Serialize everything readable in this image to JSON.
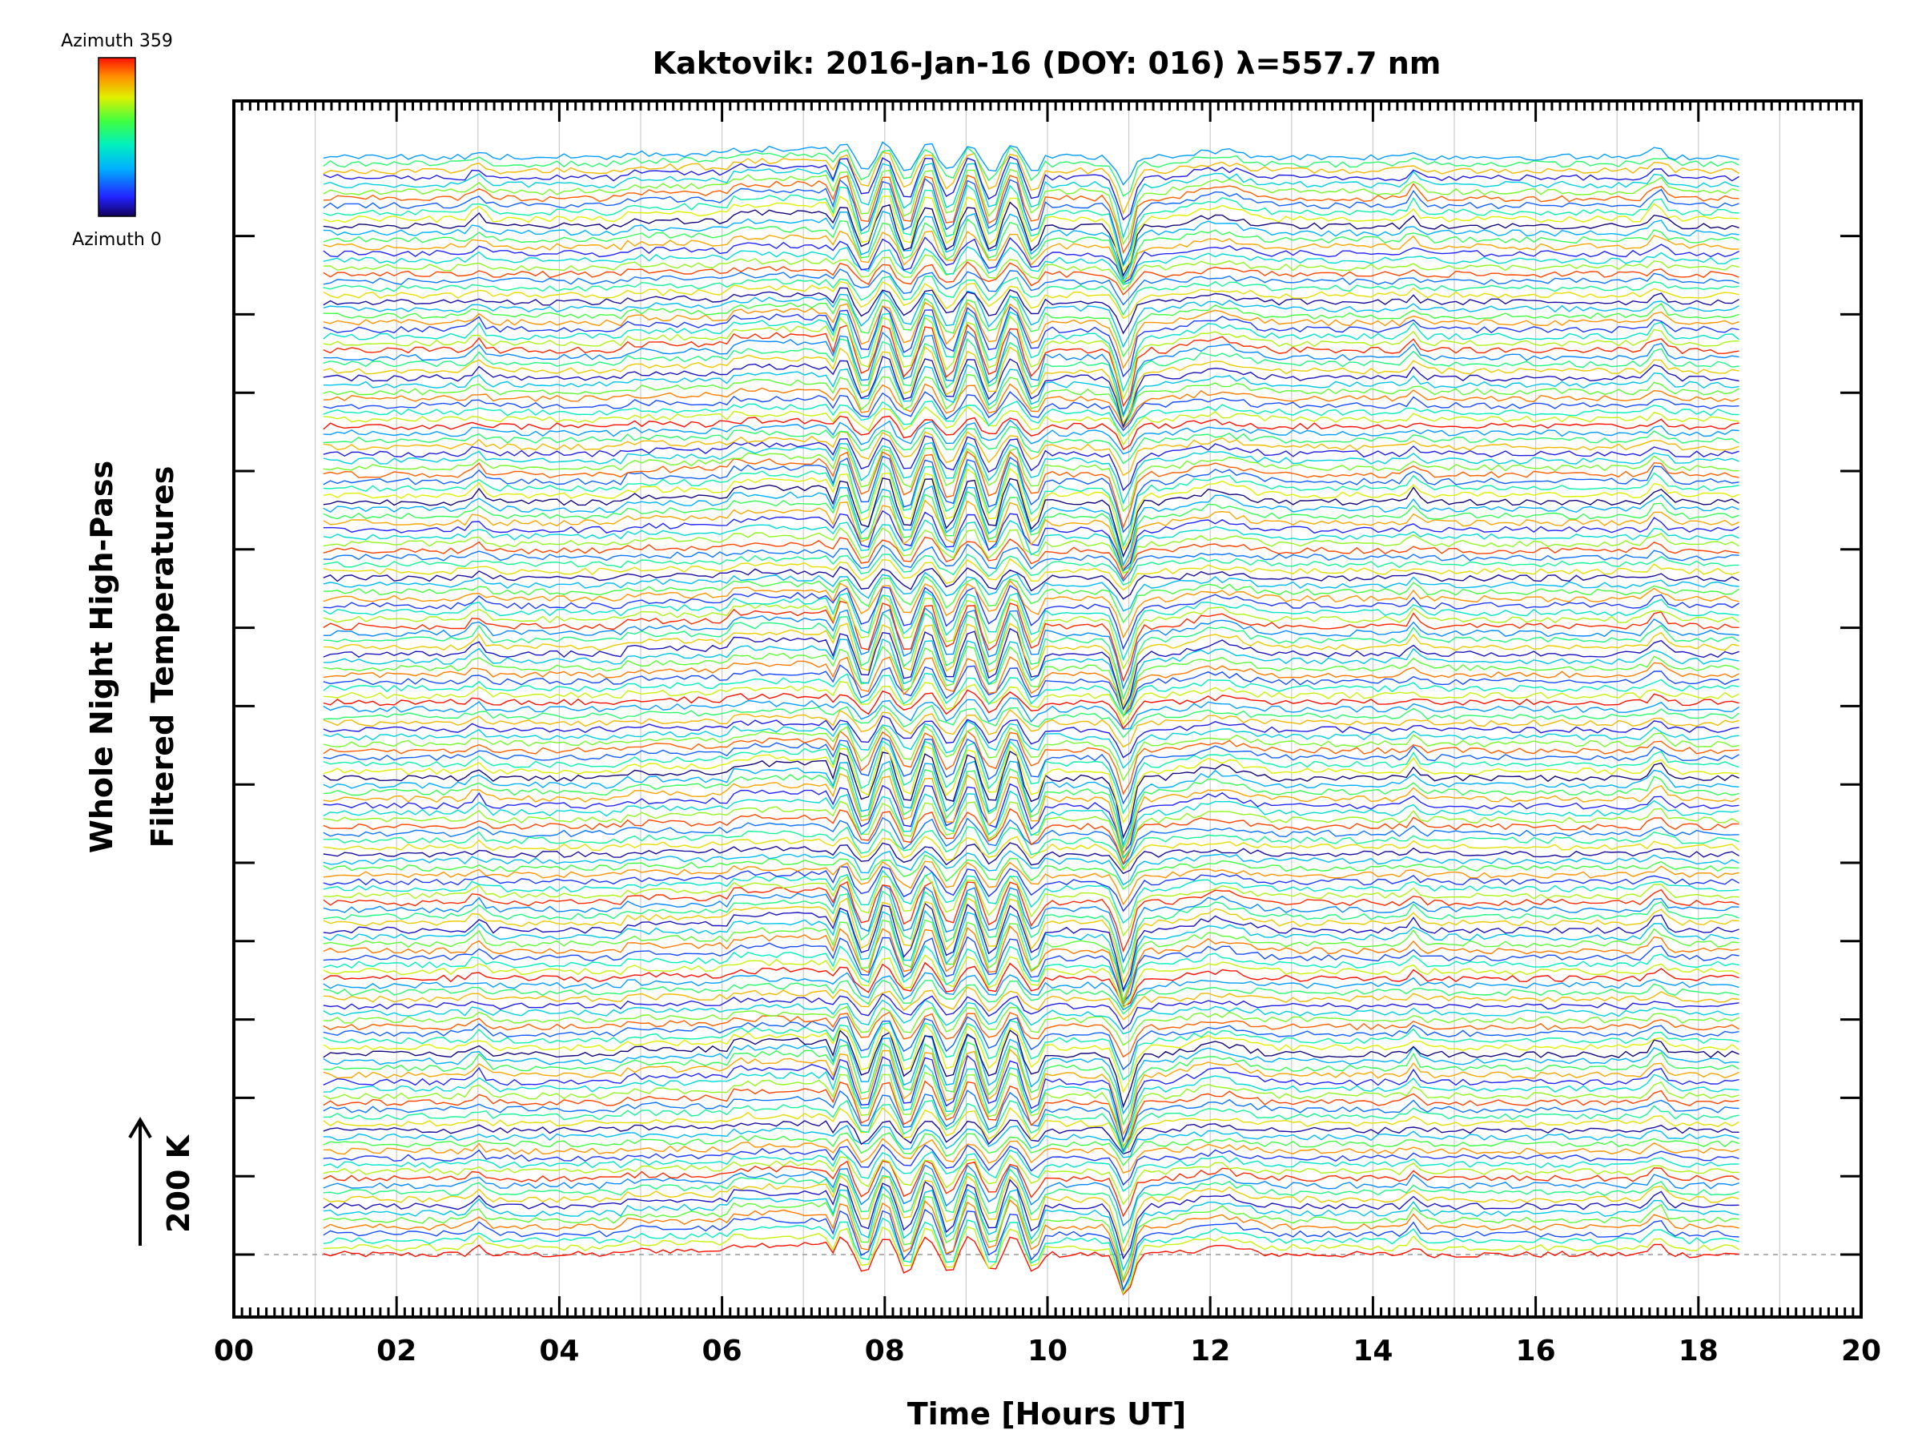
{
  "chart_data": {
    "type": "line",
    "title": "Kaktovik: 2016-Jan-16 (DOY: 016) λ=557.7 nm",
    "xlabel": "Time [Hours UT]",
    "ylabel_line1": "Whole Night High-Pass",
    "ylabel_line2": "Filtered Temperatures",
    "xlim": [
      0,
      20
    ],
    "x_ticks": [
      "00",
      "02",
      "04",
      "06",
      "08",
      "10",
      "12",
      "14",
      "16",
      "18",
      "20"
    ],
    "x_data_range": [
      1.1,
      18.5
    ],
    "scale_bar_label": "200 K",
    "colorbar": {
      "top_label": "Azimuth 359",
      "bottom_label": "Azimuth 0",
      "colormap": "rainbow (blue → red)"
    },
    "grid": "vertical lines every 1 hour",
    "n_traces": 160,
    "colors": {
      "low": "#0a0a8a",
      "mid": "#22e0e0",
      "high": "#ff2a00",
      "axis": "#000000",
      "grid": "#cccccc"
    }
  }
}
